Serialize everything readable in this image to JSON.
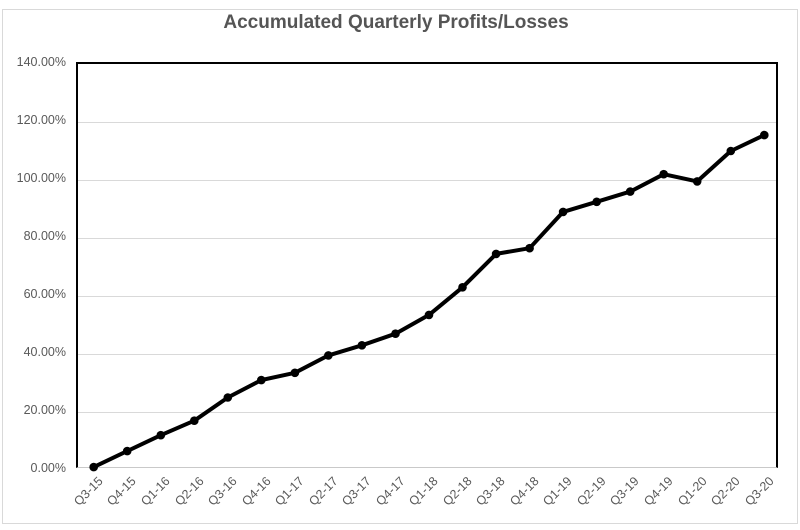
{
  "title": "Accumulated Quarterly Profits/Losses",
  "colors": {
    "title_text": "#555555",
    "axis_text": "#595959",
    "gridline": "#d9d9d9",
    "plot_border": "#000000",
    "series_line": "#000000",
    "chart_frame": "#d9d9d9"
  },
  "chart_data": {
    "type": "line",
    "title": "Accumulated Quarterly Profits/Losses",
    "categories": [
      "Q3-15",
      "Q4-15",
      "Q1-16",
      "Q2-16",
      "Q3-16",
      "Q4-16",
      "Q1-17",
      "Q2-17",
      "Q3-17",
      "Q4-17",
      "Q1-18",
      "Q2-18",
      "Q3-18",
      "Q4-18",
      "Q1-19",
      "Q2-19",
      "Q3-19",
      "Q4-19",
      "Q1-20",
      "Q2-20",
      "Q3-20"
    ],
    "values": [
      1,
      6.5,
      12,
      17,
      25,
      31,
      33.5,
      39.5,
      43,
      47,
      53.5,
      63,
      74.5,
      76.5,
      89,
      92.5,
      96,
      102,
      99.5,
      110,
      115.5
    ],
    "values_unit": "percent",
    "xlabel": "",
    "ylabel": "",
    "ylim": [
      0,
      140
    ],
    "ytick_step": 20,
    "ytick_labels": [
      "140.00%",
      "120.00%",
      "100.00%",
      "80.00%",
      "60.00%",
      "40.00%",
      "20.00%",
      "0.00%"
    ],
    "grid": "horizontal",
    "legend": "none",
    "line_color": "#000000",
    "line_width": 4,
    "marker": "circle",
    "marker_color": "#000000",
    "marker_radius": 4.3
  }
}
